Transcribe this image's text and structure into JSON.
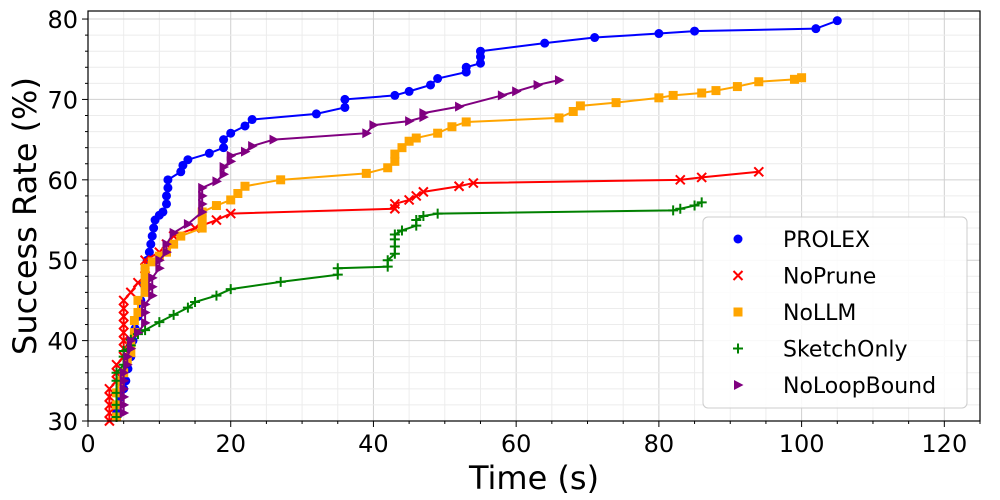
{
  "chart_data": {
    "type": "line",
    "title": "",
    "xlabel": "Time (s)",
    "ylabel": "Success Rate (%)",
    "xlim": [
      0,
      125
    ],
    "ylim": [
      30,
      81
    ],
    "xticks": [
      0,
      20,
      40,
      60,
      80,
      100,
      120
    ],
    "yticks": [
      30,
      40,
      50,
      60,
      70,
      80
    ],
    "grid": true,
    "legend_position": "lower-right",
    "series": [
      {
        "name": "PROLEX",
        "color": "#0000ff",
        "marker": "circle",
        "points": [
          [
            4,
            31
          ],
          [
            4.3,
            32
          ],
          [
            4.6,
            33
          ],
          [
            5,
            34
          ],
          [
            5.3,
            35
          ],
          [
            5.6,
            36.5
          ],
          [
            6,
            38
          ],
          [
            6.3,
            40
          ],
          [
            6.6,
            41.5
          ],
          [
            7,
            43
          ],
          [
            7.4,
            45
          ],
          [
            7.8,
            47
          ],
          [
            8,
            49
          ],
          [
            8.3,
            50
          ],
          [
            8.6,
            51
          ],
          [
            8.8,
            52
          ],
          [
            9,
            53
          ],
          [
            9.2,
            54
          ],
          [
            9.4,
            55
          ],
          [
            10,
            55.6
          ],
          [
            10.5,
            56
          ],
          [
            11,
            57
          ],
          [
            11,
            58
          ],
          [
            11.2,
            59
          ],
          [
            11.2,
            60
          ],
          [
            13,
            61
          ],
          [
            13.3,
            61.8
          ],
          [
            14,
            62.5
          ],
          [
            17,
            63.3
          ],
          [
            19,
            64
          ],
          [
            19,
            65
          ],
          [
            20,
            65.8
          ],
          [
            22,
            66.7
          ],
          [
            23,
            67.5
          ],
          [
            32,
            68.2
          ],
          [
            36,
            69
          ],
          [
            36,
            70
          ],
          [
            43,
            70.5
          ],
          [
            45,
            71
          ],
          [
            48,
            71.8
          ],
          [
            49,
            72.6
          ],
          [
            53,
            73.4
          ],
          [
            53,
            74
          ],
          [
            55,
            74.5
          ],
          [
            55,
            75.3
          ],
          [
            55,
            76
          ],
          [
            64,
            77
          ],
          [
            71,
            77.7
          ],
          [
            80,
            78.2
          ],
          [
            85,
            78.5
          ],
          [
            102,
            78.8
          ],
          [
            105,
            79.8
          ]
        ]
      },
      {
        "name": "NoPrune",
        "color": "#ff0000",
        "marker": "x",
        "points": [
          [
            3,
            30
          ],
          [
            3,
            31
          ],
          [
            3,
            32
          ],
          [
            3,
            33
          ],
          [
            3,
            34
          ],
          [
            4,
            35
          ],
          [
            4,
            36
          ],
          [
            4,
            37
          ],
          [
            5,
            38
          ],
          [
            5,
            39
          ],
          [
            5,
            40
          ],
          [
            5,
            41
          ],
          [
            5,
            42
          ],
          [
            5,
            43
          ],
          [
            5,
            44
          ],
          [
            5,
            45
          ],
          [
            6,
            46
          ],
          [
            7,
            47.2
          ],
          [
            8,
            48
          ],
          [
            8,
            49
          ],
          [
            8,
            50
          ],
          [
            10,
            51
          ],
          [
            11,
            52
          ],
          [
            12,
            53
          ],
          [
            15,
            54
          ],
          [
            18,
            55
          ],
          [
            20,
            55.8
          ],
          [
            43,
            56.4
          ],
          [
            43,
            57
          ],
          [
            45,
            57.5
          ],
          [
            46,
            58
          ],
          [
            47,
            58.5
          ],
          [
            52,
            59.2
          ],
          [
            54,
            59.6
          ],
          [
            83,
            60
          ],
          [
            86,
            60.3
          ],
          [
            94,
            61
          ]
        ]
      },
      {
        "name": "NoLLM",
        "color": "#ffa500",
        "marker": "square",
        "points": [
          [
            4,
            30.5
          ],
          [
            4,
            32
          ],
          [
            4,
            33.5
          ],
          [
            4.5,
            35
          ],
          [
            5,
            36
          ],
          [
            5.5,
            37.5
          ],
          [
            6,
            38.5
          ],
          [
            6,
            39.5
          ],
          [
            6.5,
            41
          ],
          [
            6.5,
            42.5
          ],
          [
            7,
            43.5
          ],
          [
            7,
            45
          ],
          [
            8,
            46
          ],
          [
            8,
            47
          ],
          [
            8,
            48
          ],
          [
            8,
            49
          ],
          [
            9,
            49.8
          ],
          [
            10,
            50.5
          ],
          [
            11,
            51
          ],
          [
            12,
            52
          ],
          [
            13,
            53
          ],
          [
            16,
            54
          ],
          [
            16,
            55
          ],
          [
            16,
            56
          ],
          [
            18,
            56.8
          ],
          [
            20,
            57.5
          ],
          [
            21,
            58.3
          ],
          [
            22,
            59.2
          ],
          [
            27,
            60
          ],
          [
            39,
            60.8
          ],
          [
            42,
            61.5
          ],
          [
            43,
            62.3
          ],
          [
            43,
            63.2
          ],
          [
            44,
            64
          ],
          [
            45,
            64.8
          ],
          [
            46,
            65.2
          ],
          [
            49,
            65.8
          ],
          [
            51,
            66.6
          ],
          [
            53,
            67.2
          ],
          [
            66,
            67.7
          ],
          [
            68,
            68.5
          ],
          [
            69,
            69.2
          ],
          [
            74,
            69.6
          ],
          [
            80,
            70.2
          ],
          [
            82,
            70.5
          ],
          [
            86,
            70.8
          ],
          [
            88,
            71.1
          ],
          [
            91,
            71.6
          ],
          [
            94,
            72.2
          ],
          [
            99,
            72.5
          ],
          [
            100,
            72.7
          ]
        ]
      },
      {
        "name": "SketchOnly",
        "color": "#008000",
        "marker": "plus",
        "points": [
          [
            4,
            30.5
          ],
          [
            4,
            32
          ],
          [
            4,
            33.5
          ],
          [
            4,
            35
          ],
          [
            4,
            36
          ],
          [
            5,
            37
          ],
          [
            5,
            38
          ],
          [
            5,
            38.7
          ],
          [
            6,
            39.4
          ],
          [
            6,
            40.1
          ],
          [
            7,
            40.8
          ],
          [
            8,
            41.3
          ],
          [
            10,
            42.3
          ],
          [
            12,
            43.2
          ],
          [
            14,
            44.1
          ],
          [
            15,
            44.8
          ],
          [
            18,
            45.6
          ],
          [
            20,
            46.4
          ],
          [
            27,
            47.3
          ],
          [
            35,
            48.2
          ],
          [
            35,
            49
          ],
          [
            42,
            49.2
          ],
          [
            42,
            50
          ],
          [
            43,
            50.8
          ],
          [
            43,
            51.7
          ],
          [
            43,
            52.6
          ],
          [
            43,
            53.2
          ],
          [
            44,
            53.7
          ],
          [
            46,
            54.3
          ],
          [
            46,
            55
          ],
          [
            47,
            55.5
          ],
          [
            49,
            55.8
          ],
          [
            82,
            56.2
          ],
          [
            83,
            56.4
          ],
          [
            85,
            56.8
          ],
          [
            86,
            57.2
          ]
        ]
      },
      {
        "name": "NoLoopBound",
        "color": "#800080",
        "marker": "triangle-right",
        "points": [
          [
            5,
            31
          ],
          [
            5,
            32
          ],
          [
            5,
            33
          ],
          [
            5,
            34
          ],
          [
            5,
            35
          ],
          [
            5,
            36
          ],
          [
            5.5,
            37
          ],
          [
            5.5,
            38
          ],
          [
            6,
            39
          ],
          [
            6,
            40
          ],
          [
            7,
            41
          ],
          [
            8,
            42.2
          ],
          [
            8,
            43.5
          ],
          [
            8,
            44.5
          ],
          [
            9,
            45.6
          ],
          [
            9,
            46.7
          ],
          [
            9,
            47.8
          ],
          [
            10,
            49
          ],
          [
            10,
            50
          ],
          [
            11,
            51
          ],
          [
            11,
            52
          ],
          [
            12,
            53.4
          ],
          [
            14,
            54.5
          ],
          [
            16,
            56
          ],
          [
            16,
            57
          ],
          [
            16,
            58
          ],
          [
            16,
            59
          ],
          [
            18,
            59.8
          ],
          [
            19,
            60.7
          ],
          [
            19,
            61.6
          ],
          [
            20,
            62.3
          ],
          [
            20,
            63
          ],
          [
            22,
            63.5
          ],
          [
            23,
            64.2
          ],
          [
            26,
            65
          ],
          [
            39,
            65.8
          ],
          [
            40,
            66.8
          ],
          [
            45,
            67.3
          ],
          [
            47,
            67.8
          ],
          [
            47,
            68.3
          ],
          [
            52,
            69.1
          ],
          [
            58,
            70.5
          ],
          [
            60,
            71
          ],
          [
            63,
            71.8
          ],
          [
            66,
            72.4
          ]
        ]
      }
    ]
  }
}
